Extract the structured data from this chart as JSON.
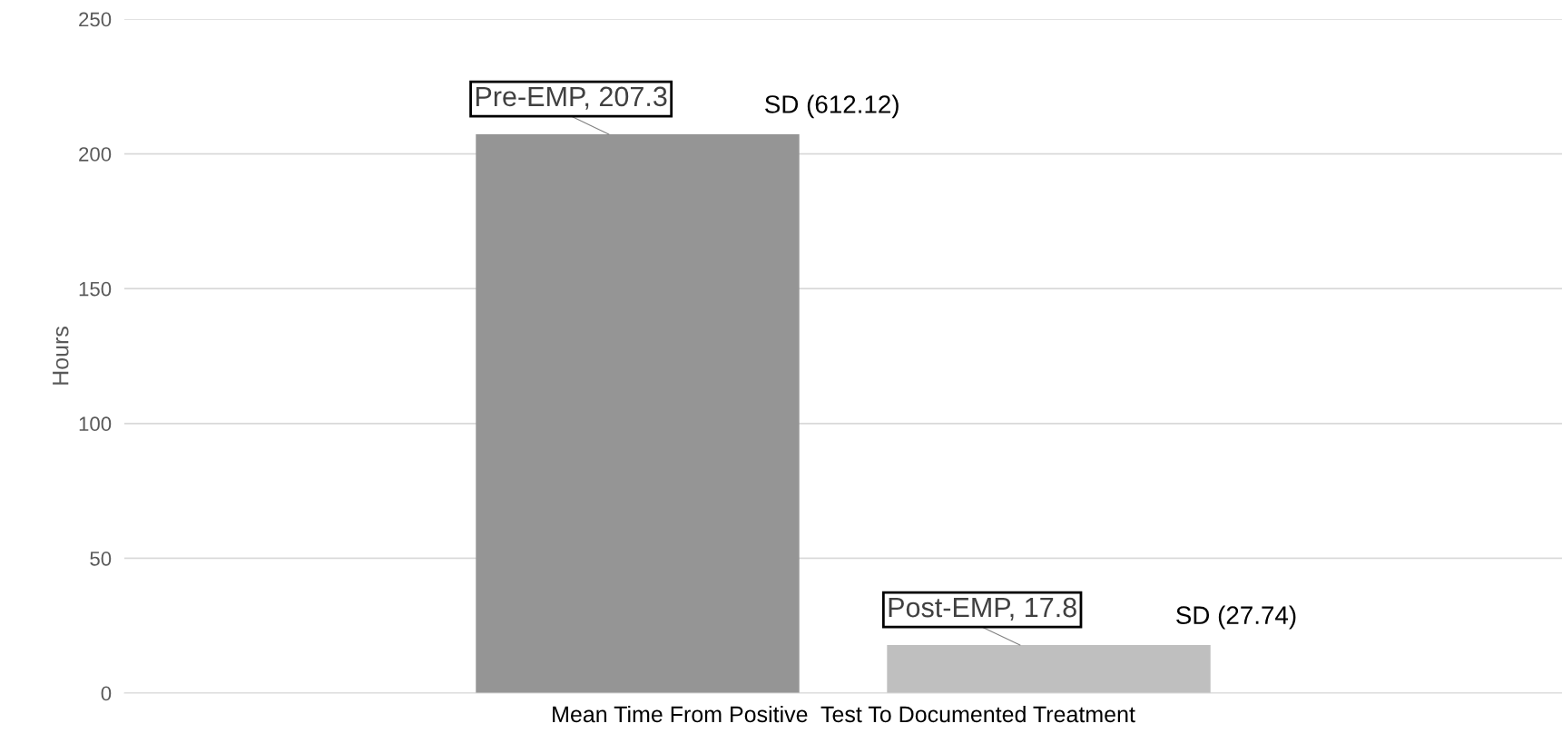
{
  "chart_data": {
    "type": "bar",
    "categories": [
      "Mean Time From Positive  Test To Documented Treatment"
    ],
    "series": [
      {
        "color": "#959595",
        "values": [
          207.3
        ],
        "value_labels": [
          "Pre-EMP, 207.3"
        ]
      },
      {
        "color": "#bfbfbf",
        "values": [
          17.8
        ],
        "value_labels": [
          "Post-EMP, 17.8"
        ]
      }
    ],
    "ylabel": "Hours",
    "ylim": [
      0,
      250
    ],
    "yticks": [
      0,
      50,
      100,
      150,
      200,
      250
    ],
    "grid": "y",
    "legend": false,
    "annotations": [
      "SD (612.12)",
      "SD (27.74)"
    ]
  }
}
